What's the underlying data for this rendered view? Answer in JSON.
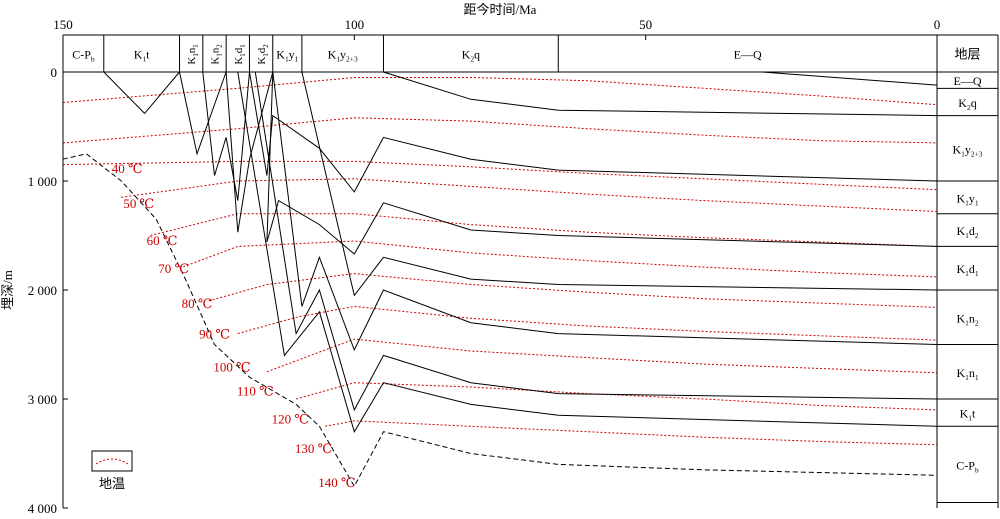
{
  "chart_data": {
    "type": "line",
    "title": "",
    "xlabel": "距今时间/Ma",
    "ylabel": "埋深/m",
    "xlim": [
      150,
      0
    ],
    "ylim": [
      0,
      4000
    ],
    "x_ticks": [
      {
        "value": 150,
        "label": "150"
      },
      {
        "value": 100,
        "label": "100"
      },
      {
        "value": 50,
        "label": "50"
      },
      {
        "value": 0,
        "label": "0"
      }
    ],
    "y_ticks": [
      {
        "value": 0,
        "label": "0"
      },
      {
        "value": 1000,
        "label": "1 000"
      },
      {
        "value": 2000,
        "label": "2 000"
      },
      {
        "value": 3000,
        "label": "3 000"
      },
      {
        "value": 4000,
        "label": "4 000"
      }
    ],
    "stratigraphic_header": [
      {
        "base": "C-P",
        "sub": "b",
        "from": 150,
        "to": 143
      },
      {
        "base": "K",
        "sub": "1",
        "tail": "t",
        "from": 143,
        "to": 130
      },
      {
        "base": "K",
        "sub": "1",
        "tail": "n",
        "tsub": "1",
        "vertical": true,
        "from": 130,
        "to": 126
      },
      {
        "base": "K",
        "sub": "1",
        "tail": "n",
        "tsub": "2",
        "vertical": true,
        "from": 126,
        "to": 122
      },
      {
        "base": "K",
        "sub": "1",
        "tail": "d",
        "tsub": "1",
        "vertical": true,
        "from": 122,
        "to": 118
      },
      {
        "base": "K",
        "sub": "1",
        "tail": "d",
        "tsub": "2",
        "vertical": true,
        "from": 118,
        "to": 114
      },
      {
        "base": "K",
        "sub": "1",
        "tail": "y",
        "tsub": "1",
        "from": 114,
        "to": 109
      },
      {
        "base": "K",
        "sub": "1",
        "tail": "y",
        "tsub": "2+3",
        "from": 109,
        "to": 95
      },
      {
        "base": "K",
        "sub": "2",
        "tail": "q",
        "from": 95,
        "to": 65
      },
      {
        "base": "E—Q",
        "from": 65,
        "to": 0
      }
    ],
    "strata_header_label": "地层",
    "strata_column": [
      {
        "base": "E—Q",
        "depth_top": 0,
        "depth_bottom": 150
      },
      {
        "base": "K",
        "sub": "2",
        "tail": "q",
        "depth_top": 150,
        "depth_bottom": 400
      },
      {
        "base": "K",
        "sub": "1",
        "tail": "y",
        "tsub": "2+3",
        "depth_top": 400,
        "depth_bottom": 1000
      },
      {
        "base": "K",
        "sub": "1",
        "tail": "y",
        "tsub": "1",
        "depth_top": 1000,
        "depth_bottom": 1300
      },
      {
        "base": "K",
        "sub": "1",
        "tail": "d",
        "tsub": "2",
        "depth_top": 1300,
        "depth_bottom": 1600
      },
      {
        "base": "K",
        "sub": "1",
        "tail": "d",
        "tsub": "1",
        "depth_top": 1600,
        "depth_bottom": 2000
      },
      {
        "base": "K",
        "sub": "1",
        "tail": "n",
        "tsub": "2",
        "depth_top": 2000,
        "depth_bottom": 2500
      },
      {
        "base": "K",
        "sub": "1",
        "tail": "n",
        "tsub": "1",
        "depth_top": 2500,
        "depth_bottom": 3000
      },
      {
        "base": "K",
        "sub": "1",
        "tail": "t",
        "depth_top": 3000,
        "depth_bottom": 3250
      },
      {
        "base": "C-P",
        "sub": "b",
        "depth_top": 3250,
        "depth_bottom": 3950
      }
    ],
    "burial_curves": [
      {
        "points": [
          [
            143,
            0
          ],
          [
            136,
            380
          ],
          [
            130,
            0
          ]
        ]
      },
      {
        "points": [
          [
            130,
            0
          ],
          [
            127,
            750
          ],
          [
            122,
            0
          ]
        ]
      },
      {
        "points": [
          [
            126,
            0
          ],
          [
            124,
            950
          ],
          [
            122,
            600
          ],
          [
            120,
            1180
          ],
          [
            118,
            0
          ]
        ]
      },
      {
        "points": [
          [
            122,
            0
          ],
          [
            120,
            1470
          ],
          [
            118,
            800
          ],
          [
            114,
            0
          ]
        ]
      },
      {
        "points": [
          [
            118,
            0
          ],
          [
            115,
            950
          ],
          [
            114,
            400
          ],
          [
            106,
            700
          ],
          [
            100,
            1100
          ],
          [
            95,
            600
          ],
          [
            80,
            800
          ],
          [
            65,
            900
          ],
          [
            0,
            1000
          ]
        ]
      },
      {
        "points": [
          [
            114,
            0
          ],
          [
            115,
            1560
          ],
          [
            113,
            1180
          ],
          [
            106,
            1400
          ],
          [
            100,
            1670
          ],
          [
            95,
            1200
          ],
          [
            80,
            1450
          ],
          [
            65,
            1500
          ],
          [
            0,
            1600
          ]
        ]
      },
      {
        "points": [
          [
            109,
            0
          ],
          [
            100,
            2050
          ],
          [
            95,
            1700
          ],
          [
            80,
            1900
          ],
          [
            65,
            1950
          ],
          [
            0,
            2000
          ]
        ]
      },
      {
        "points": [
          [
            95,
            0
          ],
          [
            80,
            250
          ],
          [
            65,
            350
          ],
          [
            0,
            400
          ]
        ]
      },
      {
        "points": [
          [
            65,
            0
          ],
          [
            45,
            0
          ],
          [
            30,
            0
          ],
          [
            0,
            120
          ]
        ]
      },
      {
        "points": [
          [
            114,
            0
          ],
          [
            109,
            2150
          ],
          [
            106,
            1700
          ],
          [
            100,
            2550
          ],
          [
            95,
            2000
          ],
          [
            80,
            2300
          ],
          [
            65,
            2400
          ],
          [
            0,
            2500
          ]
        ]
      },
      {
        "points": [
          [
            117,
            0
          ],
          [
            110,
            2400
          ],
          [
            106,
            2000
          ],
          [
            100,
            3100
          ],
          [
            95,
            2600
          ],
          [
            80,
            2850
          ],
          [
            65,
            2950
          ],
          [
            0,
            3000
          ]
        ]
      },
      {
        "points": [
          [
            120,
            0
          ],
          [
            112,
            2600
          ],
          [
            106,
            2200
          ],
          [
            100,
            3300
          ],
          [
            95,
            2850
          ],
          [
            80,
            3050
          ],
          [
            65,
            3150
          ],
          [
            0,
            3250
          ]
        ]
      }
    ],
    "basement_curve": {
      "dashed": true,
      "points": [
        [
          150,
          800
        ],
        [
          146,
          750
        ],
        [
          140,
          1000
        ],
        [
          134,
          1350
        ],
        [
          129,
          1900
        ],
        [
          124,
          2500
        ],
        [
          118,
          2800
        ],
        [
          110,
          3050
        ],
        [
          106,
          3250
        ],
        [
          100,
          3800
        ],
        [
          95,
          3300
        ],
        [
          80,
          3500
        ],
        [
          65,
          3600
        ],
        [
          40,
          3650
        ],
        [
          0,
          3700
        ]
      ]
    },
    "isotherms": [
      {
        "label": "40 ℃",
        "points": [
          [
            150,
            280
          ],
          [
            120,
            150
          ],
          [
            100,
            50
          ],
          [
            80,
            50
          ],
          [
            60,
            80
          ],
          [
            40,
            150
          ],
          [
            20,
            220
          ],
          [
            0,
            300
          ]
        ]
      },
      {
        "label": "50 ℃",
        "points": [
          [
            150,
            650
          ],
          [
            120,
            520
          ],
          [
            100,
            420
          ],
          [
            80,
            450
          ],
          [
            60,
            520
          ],
          [
            40,
            580
          ],
          [
            20,
            630
          ],
          [
            0,
            650
          ]
        ]
      },
      {
        "label": "60 ℃",
        "points": [
          [
            150,
            850
          ],
          [
            120,
            820
          ],
          [
            100,
            820
          ],
          [
            80,
            870
          ],
          [
            60,
            930
          ],
          [
            40,
            980
          ],
          [
            20,
            1030
          ],
          [
            0,
            1080
          ]
        ]
      },
      {
        "label": "70 ℃",
        "points": [
          [
            140,
            1150
          ],
          [
            120,
            1000
          ],
          [
            100,
            980
          ],
          [
            80,
            1050
          ],
          [
            60,
            1120
          ],
          [
            40,
            1180
          ],
          [
            20,
            1230
          ],
          [
            0,
            1280
          ]
        ]
      },
      {
        "label": "80 ℃",
        "points": [
          [
            135,
            1500
          ],
          [
            120,
            1300
          ],
          [
            100,
            1300
          ],
          [
            80,
            1400
          ],
          [
            60,
            1470
          ],
          [
            40,
            1520
          ],
          [
            20,
            1560
          ],
          [
            0,
            1600
          ]
        ]
      },
      {
        "label": "90 ℃",
        "points": [
          [
            130,
            1800
          ],
          [
            120,
            1600
          ],
          [
            100,
            1550
          ],
          [
            80,
            1660
          ],
          [
            60,
            1730
          ],
          [
            40,
            1790
          ],
          [
            20,
            1840
          ],
          [
            0,
            1880
          ]
        ]
      },
      {
        "label": "100 ℃",
        "points": [
          [
            125,
            2100
          ],
          [
            115,
            1950
          ],
          [
            100,
            1850
          ],
          [
            80,
            1950
          ],
          [
            60,
            2020
          ],
          [
            40,
            2080
          ],
          [
            20,
            2120
          ],
          [
            0,
            2160
          ]
        ]
      },
      {
        "label": "110 ℃",
        "points": [
          [
            120,
            2400
          ],
          [
            110,
            2250
          ],
          [
            100,
            2150
          ],
          [
            80,
            2260
          ],
          [
            60,
            2330
          ],
          [
            40,
            2380
          ],
          [
            20,
            2420
          ],
          [
            0,
            2460
          ]
        ]
      },
      {
        "label": "120 ℃",
        "points": [
          [
            115,
            2750
          ],
          [
            105,
            2550
          ],
          [
            100,
            2450
          ],
          [
            80,
            2560
          ],
          [
            60,
            2620
          ],
          [
            40,
            2680
          ],
          [
            20,
            2720
          ],
          [
            0,
            2760
          ]
        ]
      },
      {
        "label": "130 ℃",
        "points": [
          [
            110,
            3000
          ],
          [
            100,
            2850
          ],
          [
            80,
            2890
          ],
          [
            60,
            2950
          ],
          [
            40,
            3000
          ],
          [
            20,
            3060
          ],
          [
            0,
            3100
          ]
        ]
      },
      {
        "label": "140 ℃",
        "points": [
          [
            105,
            3250
          ],
          [
            100,
            3200
          ],
          [
            80,
            3250
          ],
          [
            60,
            3300
          ],
          [
            40,
            3350
          ],
          [
            20,
            3390
          ],
          [
            0,
            3420
          ]
        ]
      }
    ],
    "isotherm_label_positions": [
      {
        "x": 139,
        "y": 880
      },
      {
        "x": 137,
        "y": 1200
      },
      {
        "x": 133,
        "y": 1540
      },
      {
        "x": 131,
        "y": 1800
      },
      {
        "x": 127,
        "y": 2120
      },
      {
        "x": 124,
        "y": 2400
      },
      {
        "x": 121,
        "y": 2700
      },
      {
        "x": 117,
        "y": 2920
      },
      {
        "x": 111,
        "y": 3180
      },
      {
        "x": 107,
        "y": 3450
      },
      {
        "x": 103,
        "y": 3760
      }
    ],
    "legend": {
      "label": "地温",
      "position": "bottom-left"
    },
    "colors": {
      "axis": "#000000",
      "strata_line": "#000000",
      "isotherm": "#cc0000",
      "isotherm_label": "#cc0000"
    }
  }
}
